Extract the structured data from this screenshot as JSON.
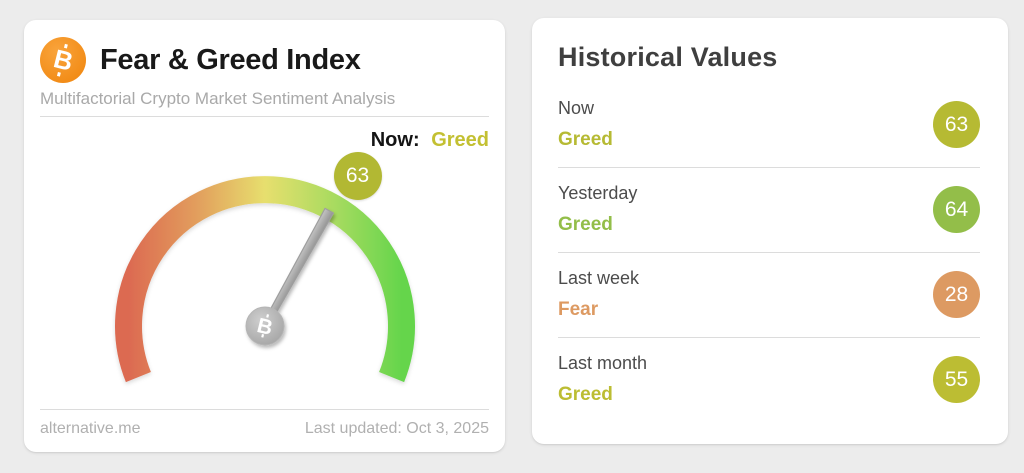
{
  "chart_data": {
    "type": "gauge",
    "title": "Fear & Greed Index",
    "subtitle": "Multifactorial Crypto Market Sentiment Analysis",
    "value": 63,
    "classification": "Greed",
    "range": [
      0,
      100
    ],
    "arc_colors": [
      "#dc6a51",
      "#e29e5d",
      "#e7df6e",
      "#a9db60",
      "#65d54c"
    ],
    "historical": [
      {
        "label": "Now",
        "classification": "Greed",
        "value": 63
      },
      {
        "label": "Yesterday",
        "classification": "Greed",
        "value": 64
      },
      {
        "label": "Last week",
        "classification": "Fear",
        "value": 28
      },
      {
        "label": "Last month",
        "classification": "Greed",
        "value": 55
      }
    ],
    "last_updated": "Oct 3, 2025",
    "source": "alternative.me"
  },
  "gauge_card": {
    "title": "Fear & Greed Index",
    "subtitle": "Multifactorial Crypto Market Sentiment Analysis",
    "bitcoin_glyph": "B",
    "now_label": "Now:",
    "now_classification": "Greed",
    "now_classification_color": "#c3c032",
    "value_badge": {
      "text": "63",
      "color": "#b2b833"
    },
    "gauge": {
      "value": 63,
      "min": 0,
      "max": 100,
      "start_deg": 202,
      "span_deg": 224,
      "arc_colors": [
        "#dc6a51",
        "#e29e5d",
        "#e7df6e",
        "#a9db60",
        "#65d54c"
      ]
    },
    "footer": {
      "source_link": "alternative.me",
      "last_updated": "Last updated: Oct 3, 2025"
    }
  },
  "historical_card": {
    "title": "Historical Values",
    "rows": [
      {
        "label": "Now",
        "classification": "Greed",
        "value": "63",
        "accent": "#b6ba33"
      },
      {
        "label": "Yesterday",
        "classification": "Greed",
        "value": "64",
        "accent": "#93be49"
      },
      {
        "label": "Last week",
        "classification": "Fear",
        "value": "28",
        "accent": "#dd9a62"
      },
      {
        "label": "Last month",
        "classification": "Greed",
        "value": "55",
        "accent": "#bcbd33"
      }
    ]
  }
}
